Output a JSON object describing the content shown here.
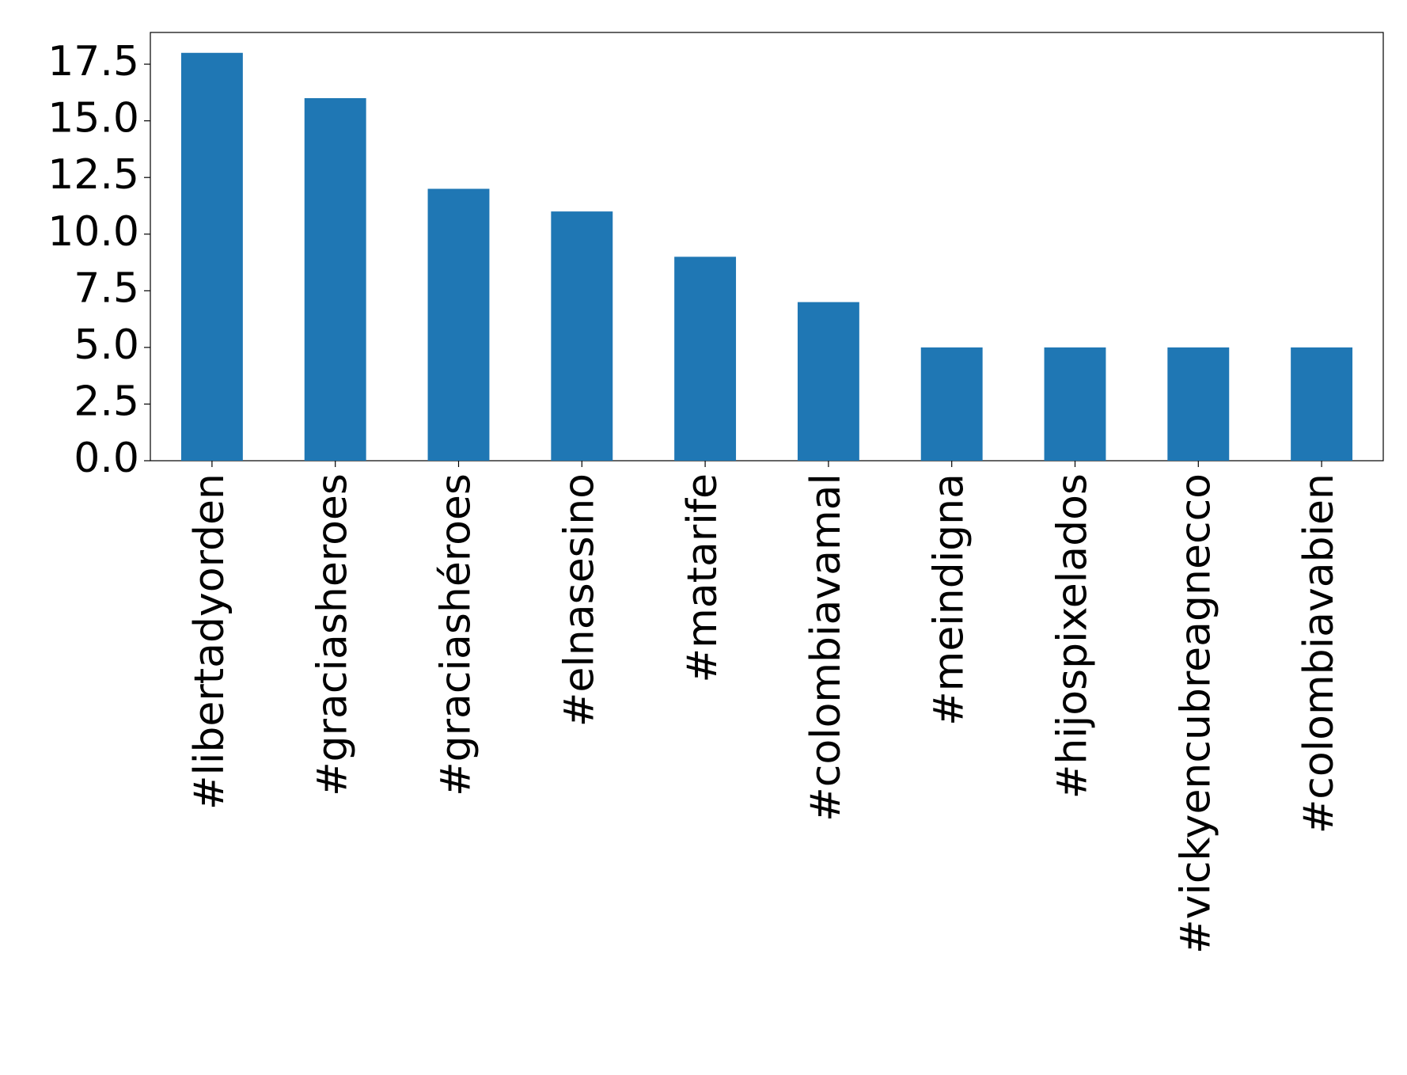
{
  "chart_data": {
    "type": "bar",
    "categories": [
      "#libertadyorden",
      "#graciasheroes",
      "#graciashéroes",
      "#elnasesino",
      "#matarife",
      "#colombiavamal",
      "#meindigna",
      "#hijospixelados",
      "#vickyencubreagnecco",
      "#colombiavabien"
    ],
    "values": [
      18,
      16,
      12,
      11,
      9,
      7,
      5,
      5,
      5,
      5
    ],
    "color": "#1f77b4",
    "ylim": [
      0,
      18.9
    ],
    "yticks": [
      {
        "value": 0,
        "label": "0.0"
      },
      2.5,
      {
        "value": 5,
        "label": "5.0"
      },
      7.5,
      {
        "value": 10,
        "label": "10.0"
      },
      12.5,
      {
        "value": 15,
        "label": "15.0"
      },
      17.5
    ],
    "grid": false
  }
}
